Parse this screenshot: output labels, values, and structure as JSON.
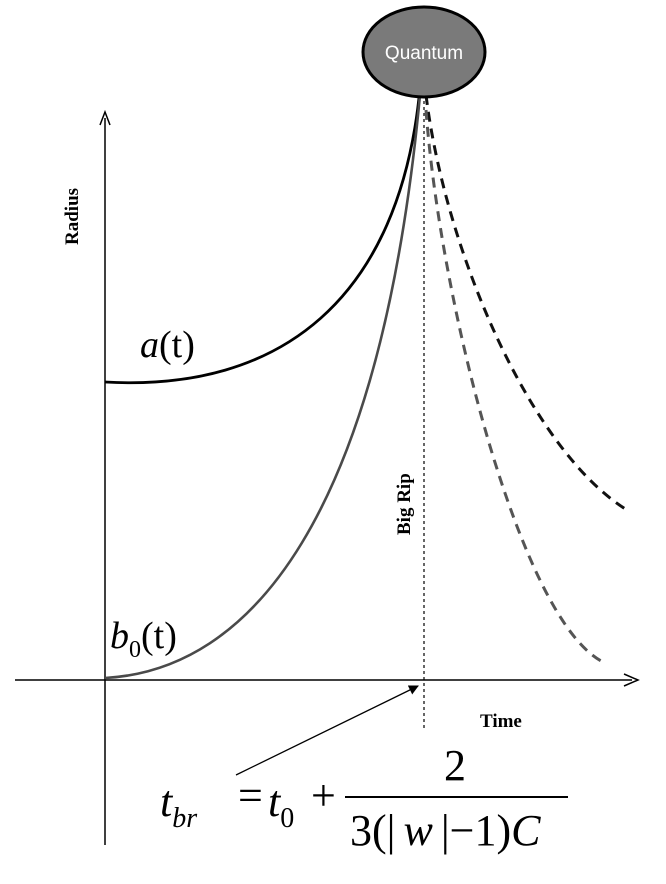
{
  "axes": {
    "y_label": "Radius",
    "x_label": "Time"
  },
  "curves": {
    "a_label_fn": "a",
    "a_label_arg": "(t)",
    "b_label_fn": "b",
    "b_label_sub": "0",
    "b_label_arg": "(t)"
  },
  "bubble": {
    "label": "Quantum",
    "fill": "#7a7a7a",
    "text_color": "#ffffff"
  },
  "marker": {
    "label": "Big Rip"
  },
  "formula": {
    "lhs_var": "t",
    "lhs_sub": "br",
    "equals": "=",
    "t0_var": "t",
    "t0_sub": "0",
    "plus": "+",
    "numerator": "2",
    "denominator_pre": "3(",
    "abs_open": "|",
    "w": "w",
    "abs_close": "|",
    "denominator_mid": "−1)",
    "C": "C"
  },
  "colors": {
    "curve_a": "#000000",
    "curve_b": "#4a4a4a",
    "dashed_a": "#111111",
    "dashed_b": "#555555"
  }
}
